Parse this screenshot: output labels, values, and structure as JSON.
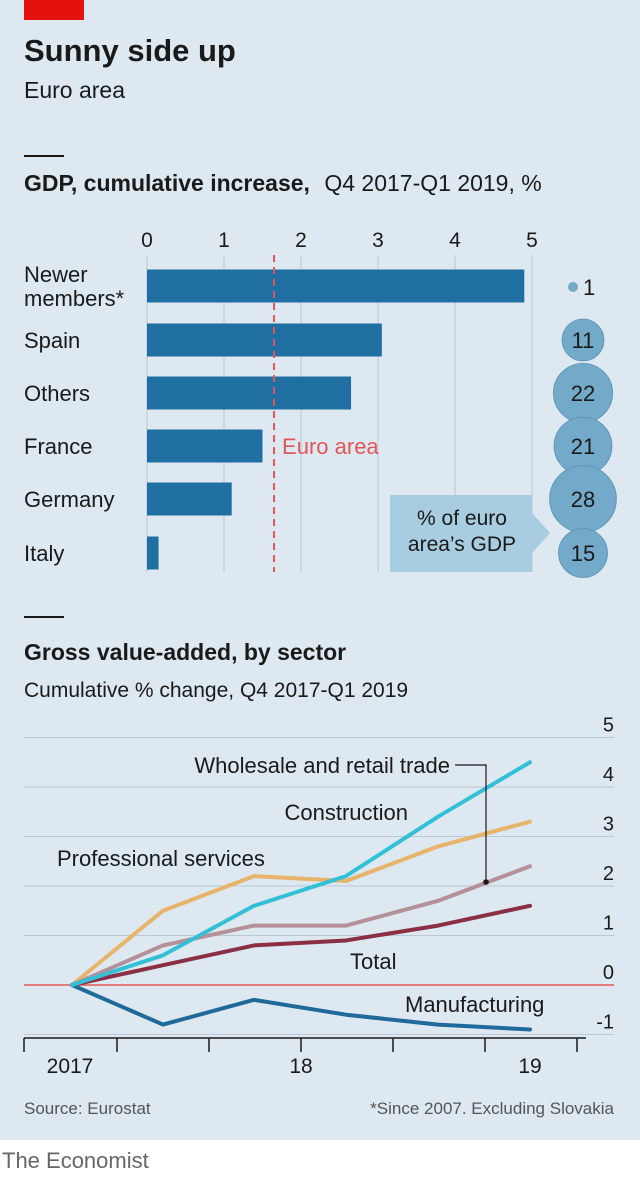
{
  "header": {
    "title": "Sunny side up",
    "subtitle": "Euro area"
  },
  "source": "Source: Eurostat",
  "footnote": "*Since 2007. Excluding Slovakia",
  "brand": "The Economist",
  "colors": {
    "background": "#dde8f0",
    "accent_red": "#e3120b",
    "bar_blue": "#1f6fa2",
    "euro_area_line": "#e15759",
    "bubble": "#74aac9",
    "callout": "#a8cce0",
    "gridline": "#b9c9d5",
    "text": "#1a1a1a",
    "muted_text": "#555555",
    "line_wholesale": "#33c0d6",
    "line_construction": "#e8b36b",
    "line_professional": "#b49098",
    "line_total": "#8b2f45",
    "line_manufacturing": "#1f6a9a",
    "zero_line": "#e15759"
  },
  "chart_data": [
    {
      "type": "bar",
      "title": "GDP, cumulative increase,",
      "subtitle": "Q4 2017-Q1 2019, %",
      "orientation": "horizontal",
      "categories": [
        "Newer members*",
        "Spain",
        "Others",
        "France",
        "Germany",
        "Italy"
      ],
      "category_lines": [
        [
          "Newer",
          "members*"
        ],
        [
          "Spain"
        ],
        [
          "Others"
        ],
        [
          "France"
        ],
        [
          "Germany"
        ],
        [
          "Italy"
        ]
      ],
      "values": [
        4.9,
        3.05,
        2.65,
        1.5,
        1.1,
        0.15
      ],
      "xlim": [
        0,
        5
      ],
      "xticks": [
        "0",
        "1",
        "2",
        "3",
        "4",
        "5"
      ],
      "grid": true,
      "reference_line": {
        "label": "Euro area",
        "value": 1.65
      },
      "bubbles": {
        "legend_value": "1",
        "values": [
          "11",
          "22",
          "21",
          "28",
          "15"
        ],
        "callout": [
          "% of euro",
          "area’s GDP"
        ]
      }
    },
    {
      "type": "line",
      "title": "Gross value-added, by sector",
      "subtitle": "Cumulative % change, Q4 2017-Q1 2019",
      "x": [
        "2017Q4",
        "2018Q1",
        "2018Q2",
        "2018Q3",
        "2018Q4",
        "2019Q1"
      ],
      "xticks": [
        "2017",
        "18",
        "19"
      ],
      "ylim": [
        -1,
        5
      ],
      "yticks": [
        "5",
        "4",
        "3",
        "2",
        "1",
        "0",
        "-1"
      ],
      "grid": true,
      "series": [
        {
          "name": "Wholesale and retail trade",
          "values": [
            0,
            0.6,
            1.6,
            2.2,
            3.4,
            4.5
          ]
        },
        {
          "name": "Construction",
          "values": [
            0,
            1.5,
            2.2,
            2.1,
            2.8,
            3.3
          ]
        },
        {
          "name": "Professional services",
          "values": [
            0,
            0.8,
            1.2,
            1.2,
            1.7,
            2.4
          ]
        },
        {
          "name": "Total",
          "values": [
            0,
            0.4,
            0.8,
            0.9,
            1.2,
            1.6
          ]
        },
        {
          "name": "Manufacturing",
          "values": [
            0,
            -0.8,
            -0.3,
            -0.6,
            -0.8,
            -0.9
          ]
        }
      ]
    }
  ]
}
